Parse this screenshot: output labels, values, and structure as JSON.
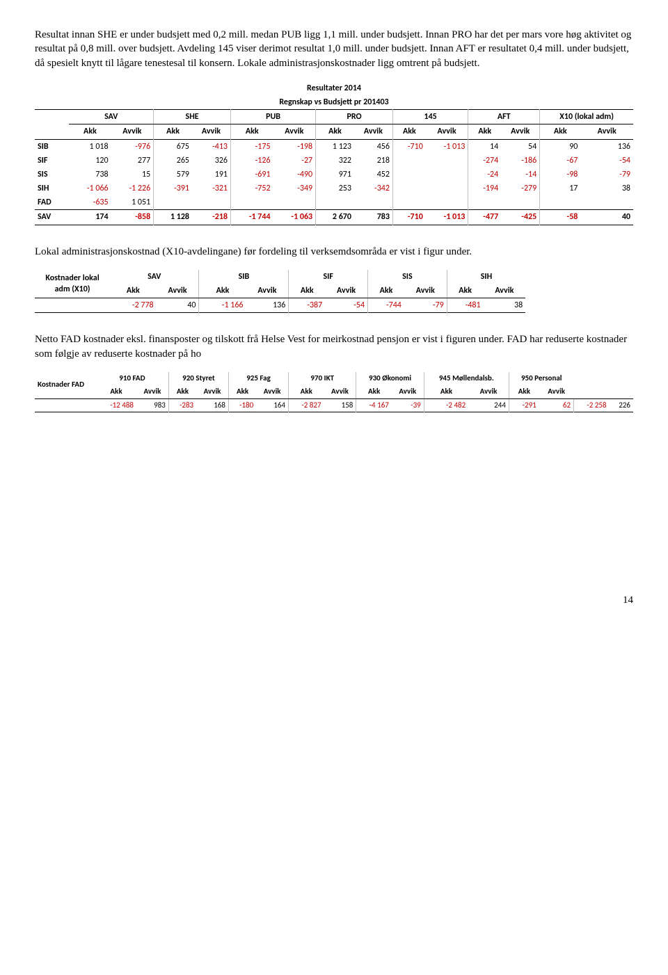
{
  "para1": "Resultat innan SHE er under budsjett med 0,2 mill. medan PUB ligg 1,1 mill. under budsjett. Innan PRO har det per mars vore høg aktivitet og resultat på 0,8 mill. over budsjett. Avdeling 145 viser derimot resultat 1,0 mill. under budsjett. Innan AFT er resultatet 0,4 mill. under budsjett, då spesielt knytt til lågare tenestesal til konsern. Lokale administrasjonskostnader ligg omtrent på budsjett.",
  "para2": "Lokal administrasjonskostnad (X10-avdelingane) før fordeling til verksemdsområda er vist i figur under.",
  "para3": "Netto FAD kostnader eksl. finansposter og tilskott frå Helse Vest for meirkostnad pensjon er vist i figuren under. FAD har reduserte kostnader som følgje av reduserte kostnader på ho",
  "page_num": "14",
  "t1": {
    "title1": "Resultater 2014",
    "title2": "Regnskap vs Budsjett pr 201403",
    "groups": [
      "SAV",
      "SHE",
      "PUB",
      "PRO",
      "145",
      "AFT",
      "X10 (lokal adm)"
    ],
    "sub": [
      "Akk",
      "Avvik"
    ],
    "rows": [
      {
        "label": "SIB",
        "vals": [
          "1 018",
          "-976",
          "675",
          "-413",
          "-175",
          "-198",
          "1 123",
          "456",
          "-710",
          "-1 013",
          "14",
          "54",
          "90",
          "136"
        ]
      },
      {
        "label": "SIF",
        "vals": [
          "120",
          "277",
          "265",
          "326",
          "-126",
          "-27",
          "322",
          "218",
          "",
          "",
          "-274",
          "-186",
          "-67",
          "-54"
        ]
      },
      {
        "label": "SIS",
        "vals": [
          "738",
          "15",
          "579",
          "191",
          "-691",
          "-490",
          "971",
          "452",
          "",
          "",
          "-24",
          "-14",
          "-98",
          "-79"
        ]
      },
      {
        "label": "SIH",
        "vals": [
          "-1 066",
          "-1 226",
          "-391",
          "-321",
          "-752",
          "-349",
          "253",
          "-342",
          "",
          "",
          "-194",
          "-279",
          "17",
          "38"
        ]
      },
      {
        "label": "FAD",
        "vals": [
          "-635",
          "1 051",
          "",
          "",
          "",
          "",
          "",
          "",
          "",
          "",
          "",
          "",
          "",
          ""
        ]
      },
      {
        "label": "SAV",
        "vals": [
          "174",
          "-858",
          "1 128",
          "-218",
          "-1 744",
          "-1 063",
          "2 670",
          "783",
          "-710",
          "-1 013",
          "-477",
          "-425",
          "-58",
          "40"
        ]
      }
    ]
  },
  "t2": {
    "rowhead": "Kostnader lokal adm (X10)",
    "groups": [
      "SAV",
      "SIB",
      "SIF",
      "SIS",
      "SIH"
    ],
    "sub": [
      "Akk",
      "Avvik"
    ],
    "vals": [
      "-2 778",
      "40",
      "-1 166",
      "136",
      "-387",
      "-54",
      "-744",
      "-79",
      "-481",
      "38"
    ]
  },
  "t3": {
    "rowhead": "Kostnader FAD",
    "row2": "FAD",
    "groups": [
      "910 FAD",
      "920 Styret",
      "925 Fag",
      "970 IKT",
      "930 Økonomi",
      "945 Møllendalsb.",
      "950 Personal"
    ],
    "sub": [
      "Akk",
      "Avvik"
    ],
    "vals": [
      "-12 488",
      "983",
      "-283",
      "168",
      "-180",
      "164",
      "-2 827",
      "158",
      "-4 167",
      "-39",
      "-2 482",
      "244",
      "-291",
      "62",
      "-2 258",
      "226"
    ]
  }
}
